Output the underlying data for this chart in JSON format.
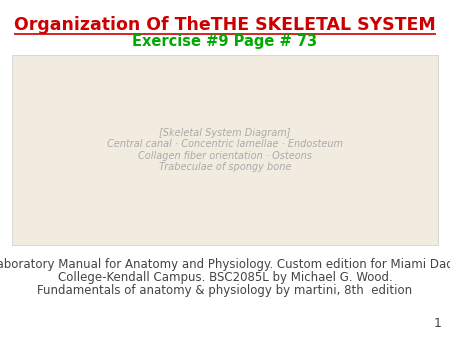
{
  "title": "Organization Of TheTHE SKELETAL SYSTEM",
  "subtitle": "Exercise #9 Page # 73",
  "title_color": "#cc0000",
  "subtitle_color": "#00aa00",
  "body_line1": "Laboratory Manual for Anatomy and Physiology. Custom edition for Miami Dade",
  "body_line2": "College-Kendall Campus. BSC2085L by Michael G. Wood.",
  "body_line3_main": "Fundamentals of anatomy & physiology by martini, 8",
  "body_line3_sup": "th",
  "body_line3_tail": "  edition",
  "page_number": "1",
  "bg_color": "#ffffff",
  "body_color": "#444444",
  "body_fontsize": 8.5,
  "title_fontsize": 12.5,
  "subtitle_fontsize": 10.5,
  "image_placeholder_color": "#f2ece0",
  "image_border_color": "#cccccc"
}
